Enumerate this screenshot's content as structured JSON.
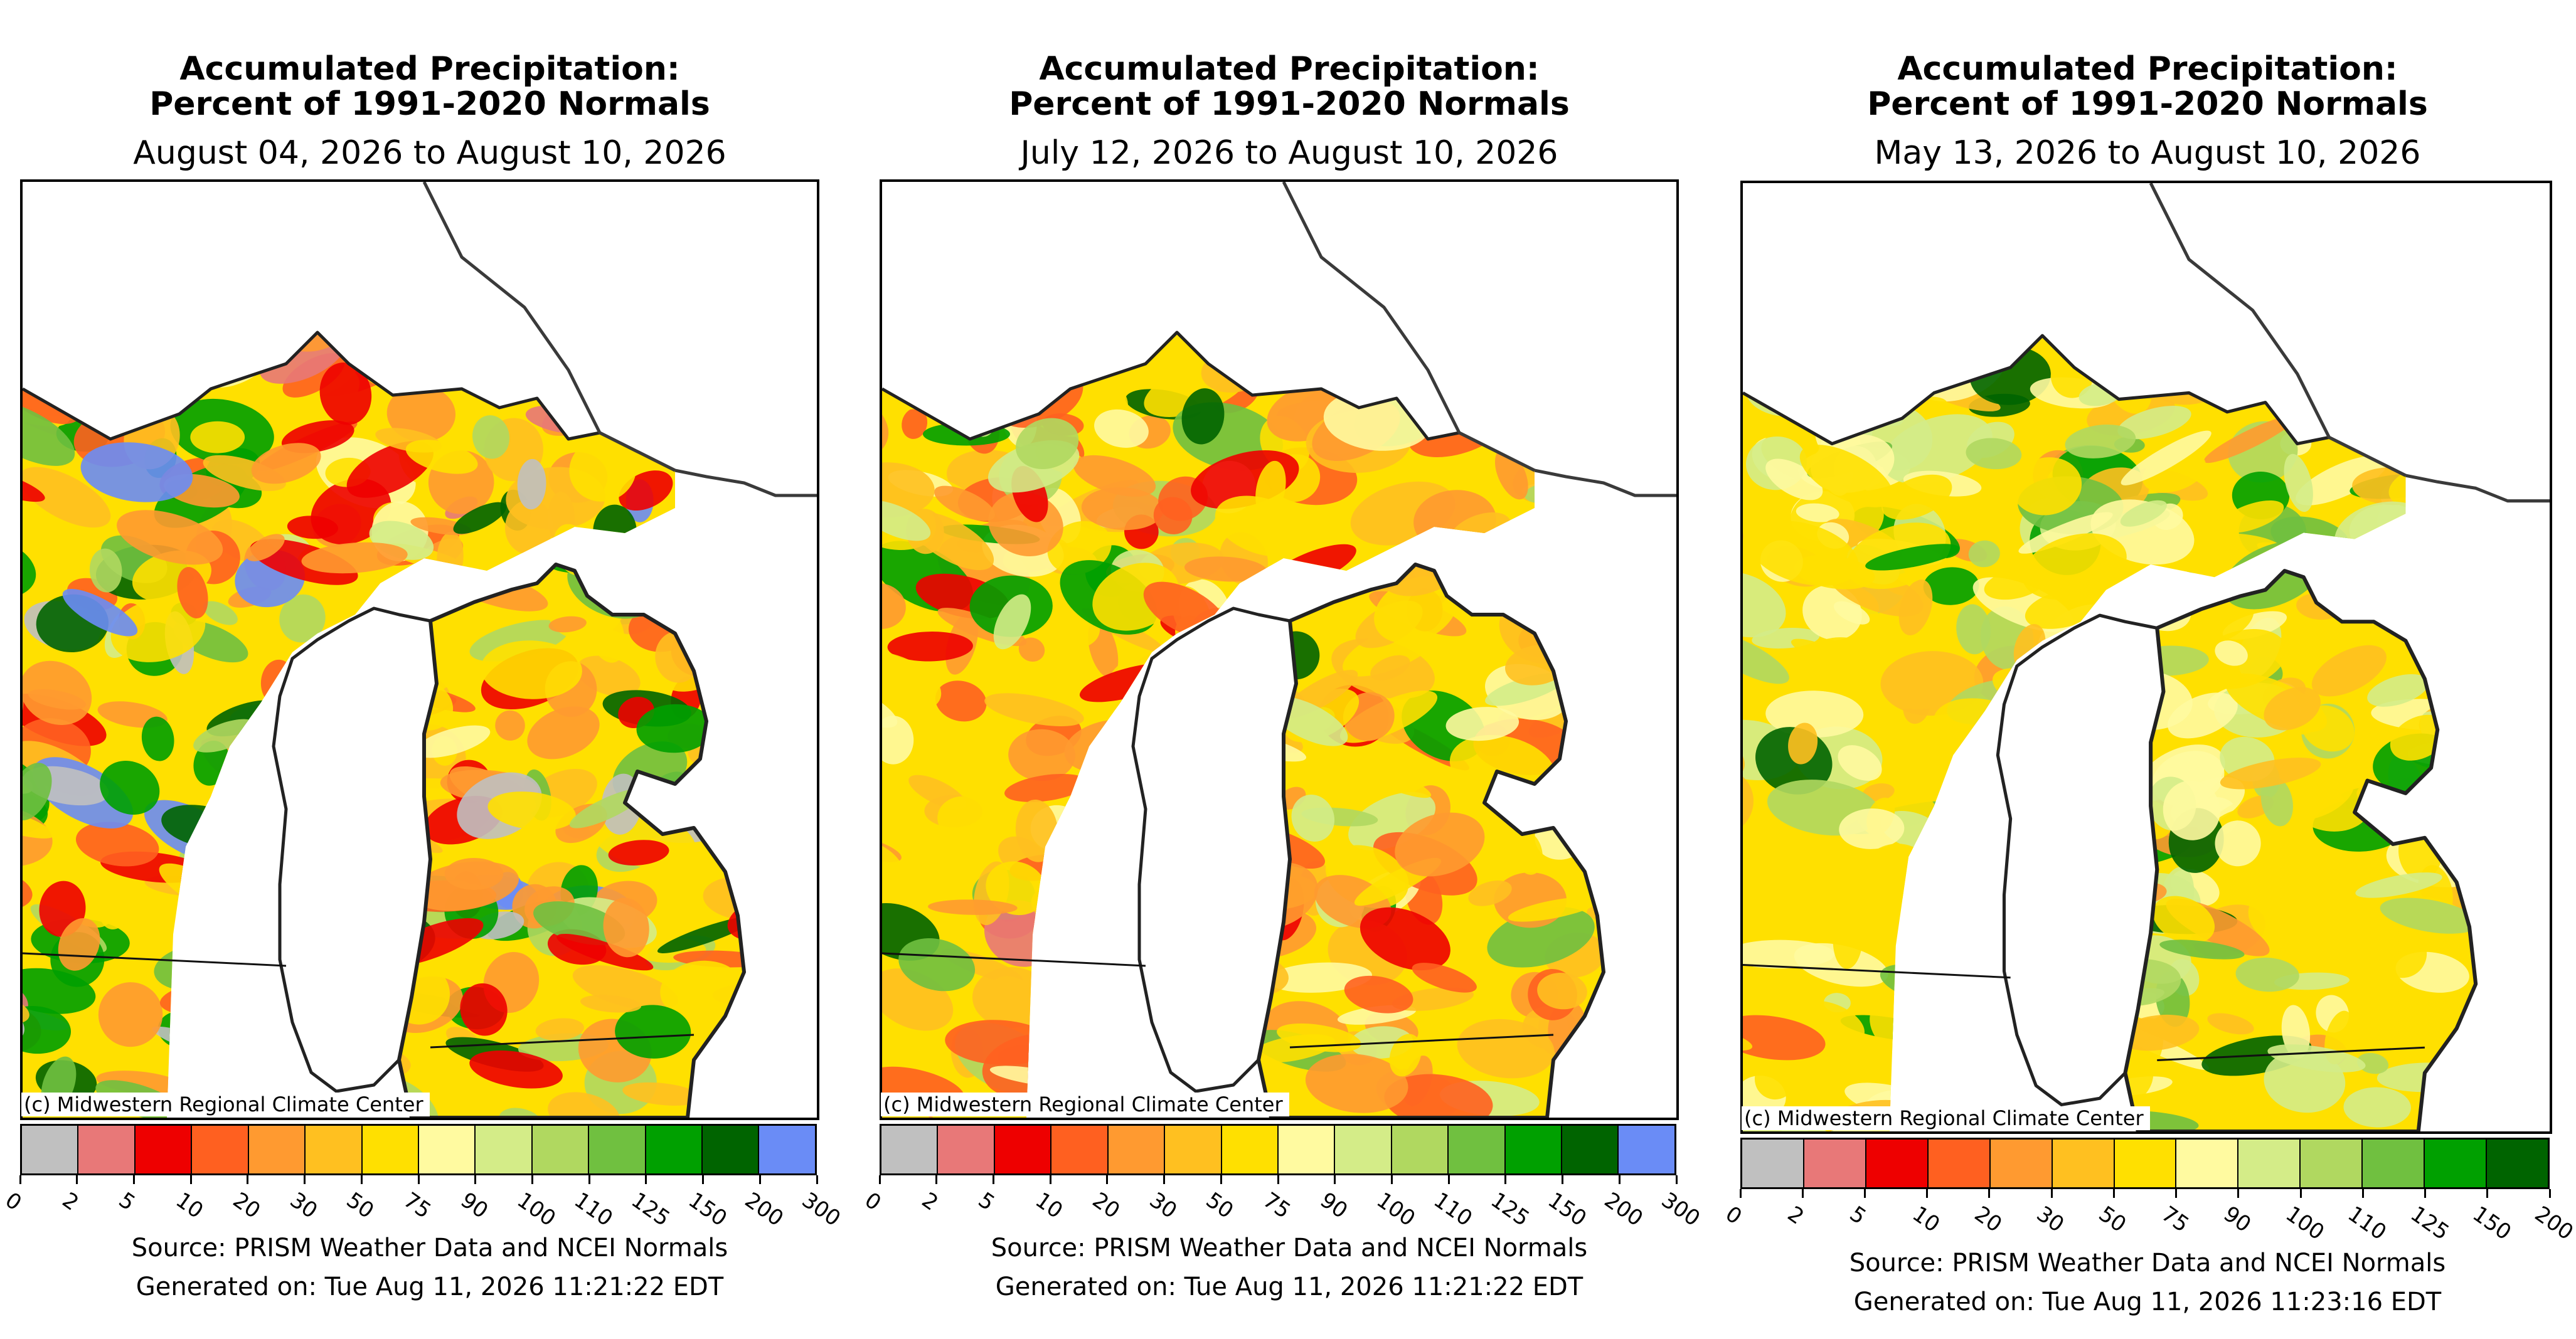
{
  "panels": [
    {
      "title_line1": "Accumulated Precipitation:",
      "title_line2": "Percent of 1991-2020 Normals",
      "date_range": "August 04, 2026 to August 10, 2026",
      "credit": "(c) Midwestern Regional Climate Center",
      "scale_labels": [
        "0",
        "2",
        "5",
        "10",
        "20",
        "30",
        "50",
        "75",
        "90",
        "100",
        "110",
        "125",
        "150",
        "200",
        "300"
      ],
      "scale_colors": [
        "#c0c0c0",
        "#e87878",
        "#ee0000",
        "#ff6020",
        "#ff9a30",
        "#ffc020",
        "#ffe000",
        "#fffaa0",
        "#d4ec88",
        "#b0d860",
        "#70c040",
        "#00a000",
        "#006400",
        "#6a8cf6"
      ],
      "source": "Source: PRISM Weather Data and NCEI Normals",
      "generated": "Generated on: Tue Aug 11, 2026 11:21:22 EDT",
      "fill_profile": "dry-wet-mix"
    },
    {
      "title_line1": "Accumulated Precipitation:",
      "title_line2": "Percent of 1991-2020 Normals",
      "date_range": "July 12, 2026 to August 10, 2026",
      "credit": "(c) Midwestern Regional Climate Center",
      "scale_labels": [
        "0",
        "2",
        "5",
        "10",
        "20",
        "30",
        "50",
        "75",
        "90",
        "100",
        "110",
        "125",
        "150",
        "200",
        "300"
      ],
      "scale_colors": [
        "#c0c0c0",
        "#e87878",
        "#ee0000",
        "#ff6020",
        "#ff9a30",
        "#ffc020",
        "#ffe000",
        "#fffaa0",
        "#d4ec88",
        "#b0d860",
        "#70c040",
        "#00a000",
        "#006400",
        "#6a8cf6"
      ],
      "source": "Source: PRISM Weather Data and NCEI Normals",
      "generated": "Generated on: Tue Aug 11, 2026 11:21:22 EDT",
      "fill_profile": "mostly-dry"
    },
    {
      "title_line1": "Accumulated Precipitation:",
      "title_line2": "Percent of 1991-2020 Normals",
      "date_range": "May 13, 2026 to August 10, 2026",
      "credit": "(c) Midwestern Regional Climate Center",
      "scale_labels": [
        "0",
        "2",
        "5",
        "10",
        "20",
        "30",
        "50",
        "75",
        "90",
        "100",
        "110",
        "125",
        "150",
        "200"
      ],
      "scale_colors": [
        "#c0c0c0",
        "#e87878",
        "#ee0000",
        "#ff6020",
        "#ff9a30",
        "#ffc020",
        "#ffe000",
        "#fffaa0",
        "#d4ec88",
        "#b0d860",
        "#70c040",
        "#00a000",
        "#006400"
      ],
      "source": "Source: PRISM Weather Data and NCEI Normals",
      "generated": "Generated on: Tue Aug 11, 2026 11:23:16 EDT",
      "fill_profile": "near-normal-wet"
    }
  ]
}
